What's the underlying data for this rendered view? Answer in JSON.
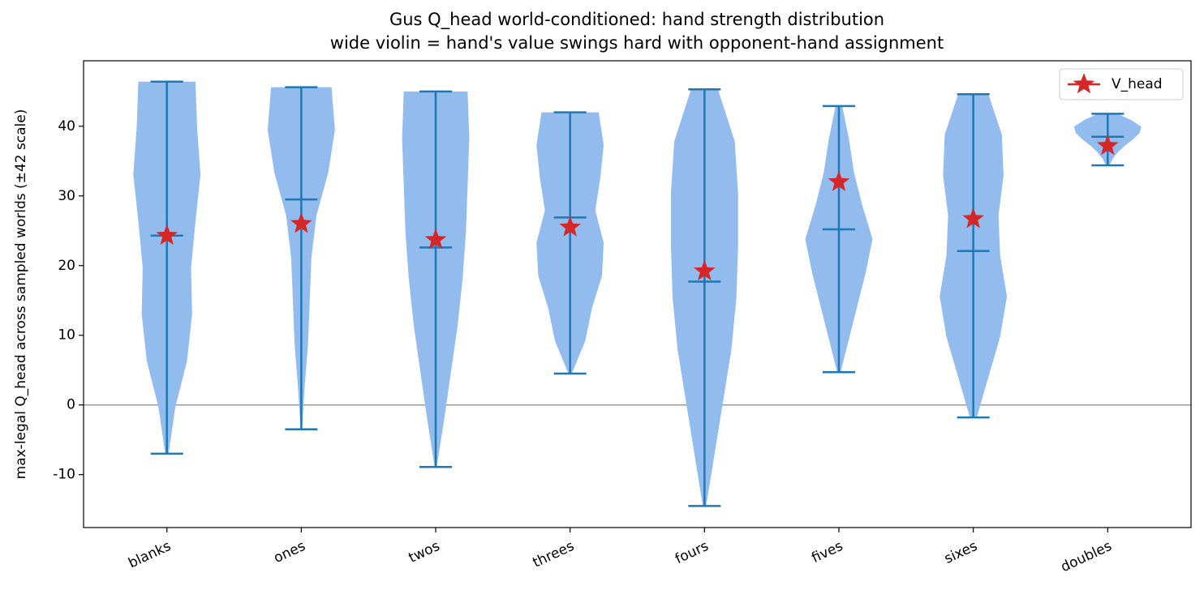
{
  "chart_data": {
    "type": "violin",
    "title": "Gus Q_head world-conditioned: hand strength distribution",
    "subtitle": "wide violin = hand's value swings hard with opponent-hand assignment",
    "ylabel": "max-legal Q_head across sampled worlds (±42 scale)",
    "categories": [
      "blanks",
      "ones",
      "twos",
      "threes",
      "fours",
      "fives",
      "sixes",
      "doubles"
    ],
    "min": [
      -7,
      -3.5,
      -8.9,
      4.5,
      -14.5,
      4.7,
      -1.8,
      34.4
    ],
    "max": [
      46.4,
      45.6,
      45.0,
      42.0,
      45.3,
      42.9,
      44.6,
      41.8
    ],
    "median": [
      24.3,
      29.5,
      22.6,
      26.9,
      17.7,
      25.2,
      22.1,
      38.5
    ],
    "density": [
      [
        0.05,
        0.25,
        0.6,
        0.75,
        0.72,
        0.85,
        1.0,
        0.9,
        0.85
      ],
      [
        0.02,
        0.1,
        0.2,
        0.25,
        0.3,
        0.45,
        0.8,
        1.0,
        0.9
      ],
      [
        0.03,
        0.25,
        0.45,
        0.65,
        0.8,
        0.9,
        0.95,
        1.0,
        0.95
      ],
      [
        0.05,
        0.45,
        0.65,
        0.95,
        1.0,
        0.75,
        0.9,
        1.0,
        0.85
      ],
      [
        0.05,
        0.3,
        0.55,
        0.8,
        0.95,
        1.0,
        1.0,
        0.9,
        0.4
      ],
      [
        0.05,
        0.3,
        0.55,
        0.8,
        1.0,
        0.7,
        0.45,
        0.3,
        0.1
      ],
      [
        0.1,
        0.45,
        0.8,
        1.0,
        0.8,
        0.75,
        0.9,
        0.85,
        0.45
      ],
      [
        0.05,
        0.15,
        0.3,
        0.5,
        0.75,
        0.95,
        1.0,
        0.7,
        0.3
      ]
    ],
    "violin_color": "#92bbee",
    "line_color": "#1f77b4",
    "series": [
      {
        "name": "V_head",
        "color": "#d62728",
        "values": [
          24.3,
          26.0,
          23.7,
          25.5,
          19.2,
          32.0,
          26.7,
          37.2
        ]
      }
    ],
    "hline": 0,
    "ylim": [
      -17.6,
      49.4
    ],
    "yticks": [
      -10,
      0,
      10,
      20,
      30,
      40
    ],
    "legend": "upper right"
  }
}
